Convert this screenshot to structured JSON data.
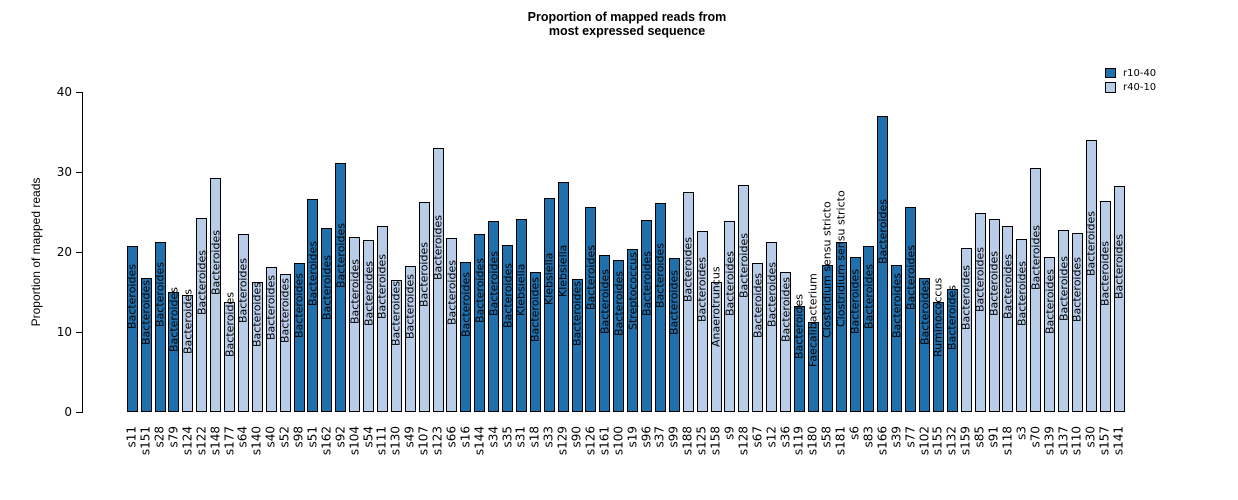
{
  "title": {
    "line1": "Proportion of mapped reads from",
    "line2": "most expressed sequence"
  },
  "y_axis": {
    "label": "Proportion of mapped reads",
    "ticks": [
      "0",
      "10",
      "20",
      "30",
      "40"
    ]
  },
  "legend": {
    "items": [
      {
        "label": "r10-40",
        "group": "r10-40"
      },
      {
        "label": "r40-10",
        "group": "r40-10"
      }
    ]
  },
  "chart_data": {
    "type": "bar",
    "title": "Proportion of mapped reads from most expressed sequence",
    "ylabel": "Proportion of mapped reads",
    "ylim": [
      0,
      40
    ],
    "grid": false,
    "legend_position": "top-right",
    "colors": {
      "r10-40": "#2070AE",
      "r40-10": "#B9CDE9"
    },
    "bars": [
      {
        "sample": "s11",
        "taxon": "Bacteroides",
        "group": "r10-40",
        "value": 20.7
      },
      {
        "sample": "s151",
        "taxon": "Bacteroides",
        "group": "r10-40",
        "value": 16.8
      },
      {
        "sample": "s28",
        "taxon": "Bacteroides",
        "group": "r10-40",
        "value": 21.2
      },
      {
        "sample": "s79",
        "taxon": "Bacteroides",
        "group": "r10-40",
        "value": 15.0
      },
      {
        "sample": "s124",
        "taxon": "Bacteroides",
        "group": "r40-10",
        "value": 14.6
      },
      {
        "sample": "s122",
        "taxon": "Bacteroides",
        "group": "r40-10",
        "value": 24.2
      },
      {
        "sample": "s148",
        "taxon": "Bacteroides",
        "group": "r40-10",
        "value": 29.2
      },
      {
        "sample": "s177",
        "taxon": "Bacteroides",
        "group": "r40-10",
        "value": 13.7
      },
      {
        "sample": "s64",
        "taxon": "Bacteroides",
        "group": "r40-10",
        "value": 22.3
      },
      {
        "sample": "s140",
        "taxon": "Bacteroides",
        "group": "r40-10",
        "value": 16.2
      },
      {
        "sample": "s40",
        "taxon": "Bacteroides",
        "group": "r40-10",
        "value": 18.1
      },
      {
        "sample": "s52",
        "taxon": "Bacteroides",
        "group": "r40-10",
        "value": 17.2
      },
      {
        "sample": "s98",
        "taxon": "Bacteroides",
        "group": "r10-40",
        "value": 18.6
      },
      {
        "sample": "s51",
        "taxon": "Bacteroides",
        "group": "r10-40",
        "value": 26.6
      },
      {
        "sample": "s162",
        "taxon": "Bacteroides",
        "group": "r10-40",
        "value": 23.0
      },
      {
        "sample": "s92",
        "taxon": "Bacteroides",
        "group": "r10-40",
        "value": 31.1
      },
      {
        "sample": "s104",
        "taxon": "Bacteroides",
        "group": "r40-10",
        "value": 21.9
      },
      {
        "sample": "s54",
        "taxon": "Bacteroides",
        "group": "r40-10",
        "value": 21.5
      },
      {
        "sample": "s111",
        "taxon": "Bacteroides",
        "group": "r40-10",
        "value": 23.3
      },
      {
        "sample": "s130",
        "taxon": "Bacteroides",
        "group": "r40-10",
        "value": 16.5
      },
      {
        "sample": "s49",
        "taxon": "Bacteroides",
        "group": "r40-10",
        "value": 18.3
      },
      {
        "sample": "s107",
        "taxon": "Bacteroides",
        "group": "r40-10",
        "value": 26.3
      },
      {
        "sample": "s123",
        "taxon": "Bacteroides",
        "group": "r40-10",
        "value": 33.0
      },
      {
        "sample": "s66",
        "taxon": "Bacteroides",
        "group": "r40-10",
        "value": 21.7
      },
      {
        "sample": "s16",
        "taxon": "Bacteroides",
        "group": "r10-40",
        "value": 18.8
      },
      {
        "sample": "s144",
        "taxon": "Bacteroides",
        "group": "r10-40",
        "value": 22.2
      },
      {
        "sample": "s34",
        "taxon": "Bacteroides",
        "group": "r10-40",
        "value": 23.9
      },
      {
        "sample": "s35",
        "taxon": "Bacteroides",
        "group": "r10-40",
        "value": 20.9
      },
      {
        "sample": "s31",
        "taxon": "Klebsiella",
        "group": "r10-40",
        "value": 24.1
      },
      {
        "sample": "s18",
        "taxon": "Bacteroides",
        "group": "r10-40",
        "value": 17.5
      },
      {
        "sample": "s33",
        "taxon": "Klebsiella",
        "group": "r10-40",
        "value": 26.8
      },
      {
        "sample": "s129",
        "taxon": "Klebsiella",
        "group": "r10-40",
        "value": 28.8
      },
      {
        "sample": "s90",
        "taxon": "Bacteroides",
        "group": "r10-40",
        "value": 16.6
      },
      {
        "sample": "s126",
        "taxon": "Bacteroides",
        "group": "r10-40",
        "value": 25.6
      },
      {
        "sample": "s161",
        "taxon": "Bacteroides",
        "group": "r10-40",
        "value": 19.6
      },
      {
        "sample": "s100",
        "taxon": "Bacteroides",
        "group": "r10-40",
        "value": 19.0
      },
      {
        "sample": "s19",
        "taxon": "Streptococcus",
        "group": "r10-40",
        "value": 20.4
      },
      {
        "sample": "s96",
        "taxon": "Bacteroides",
        "group": "r10-40",
        "value": 24.0
      },
      {
        "sample": "s37",
        "taxon": "Bacteroides",
        "group": "r10-40",
        "value": 26.1
      },
      {
        "sample": "s99",
        "taxon": "Bacteroides",
        "group": "r10-40",
        "value": 19.3
      },
      {
        "sample": "s188",
        "taxon": "Bacteroides",
        "group": "r40-10",
        "value": 27.5
      },
      {
        "sample": "s125",
        "taxon": "Bacteroides",
        "group": "r40-10",
        "value": 22.6
      },
      {
        "sample": "s158",
        "taxon": "Anaerotruncus",
        "group": "r40-10",
        "value": 16.3
      },
      {
        "sample": "s9",
        "taxon": "Bacteroides",
        "group": "r40-10",
        "value": 23.9
      },
      {
        "sample": "s128",
        "taxon": "Bacteroides",
        "group": "r40-10",
        "value": 28.4
      },
      {
        "sample": "s67",
        "taxon": "Bacteroides",
        "group": "r40-10",
        "value": 18.6
      },
      {
        "sample": "s12",
        "taxon": "Bacteroides",
        "group": "r40-10",
        "value": 21.3
      },
      {
        "sample": "s36",
        "taxon": "Bacteroides",
        "group": "r40-10",
        "value": 17.5
      },
      {
        "sample": "s119",
        "taxon": "Bacteroides",
        "group": "r10-40",
        "value": 13.3
      },
      {
        "sample": "s180",
        "taxon": "Faecalibacterium",
        "group": "r10-40",
        "value": 11.2
      },
      {
        "sample": "s58",
        "taxon": "Clostridium sensu stricto",
        "group": "r10-40",
        "value": 18.4
      },
      {
        "sample": "s181",
        "taxon": "Clostridium sensu stricto",
        "group": "r10-40",
        "value": 21.2
      },
      {
        "sample": "s6",
        "taxon": "Bacteroides",
        "group": "r10-40",
        "value": 19.4
      },
      {
        "sample": "s83",
        "taxon": "Bacteroides",
        "group": "r10-40",
        "value": 20.8
      },
      {
        "sample": "s166",
        "taxon": "Bacteroides",
        "group": "r10-40",
        "value": 37.0
      },
      {
        "sample": "s39",
        "taxon": "Bacteroides",
        "group": "r10-40",
        "value": 18.4
      },
      {
        "sample": "s77",
        "taxon": "Bacteroides",
        "group": "r10-40",
        "value": 25.6
      },
      {
        "sample": "s102",
        "taxon": "Bacteroides",
        "group": "r10-40",
        "value": 16.7
      },
      {
        "sample": "s155",
        "taxon": "Ruminococcus",
        "group": "r10-40",
        "value": 13.7
      },
      {
        "sample": "s132",
        "taxon": "Bacteroides",
        "group": "r10-40",
        "value": 15.4
      },
      {
        "sample": "s159",
        "taxon": "Bacteroides",
        "group": "r40-10",
        "value": 20.5
      },
      {
        "sample": "s85",
        "taxon": "Bacteroides",
        "group": "r40-10",
        "value": 24.9
      },
      {
        "sample": "s91",
        "taxon": "Bacteroides",
        "group": "r40-10",
        "value": 24.1
      },
      {
        "sample": "s118",
        "taxon": "Bacteroides",
        "group": "r40-10",
        "value": 23.2
      },
      {
        "sample": "s3",
        "taxon": "Bacteroides",
        "group": "r40-10",
        "value": 21.6
      },
      {
        "sample": "s70",
        "taxon": "Bacteroides",
        "group": "r40-10",
        "value": 30.5
      },
      {
        "sample": "s139",
        "taxon": "Bacteroides",
        "group": "r40-10",
        "value": 19.4
      },
      {
        "sample": "s137",
        "taxon": "Bacteroides",
        "group": "r40-10",
        "value": 22.8
      },
      {
        "sample": "s110",
        "taxon": "Bacteroides",
        "group": "r40-10",
        "value": 22.4
      },
      {
        "sample": "s30",
        "taxon": "Bacteroides",
        "group": "r40-10",
        "value": 34.0
      },
      {
        "sample": "s157",
        "taxon": "Bacteroides",
        "group": "r40-10",
        "value": 26.4
      },
      {
        "sample": "s141",
        "taxon": "Bacteroides",
        "group": "r40-10",
        "value": 28.3
      }
    ]
  }
}
